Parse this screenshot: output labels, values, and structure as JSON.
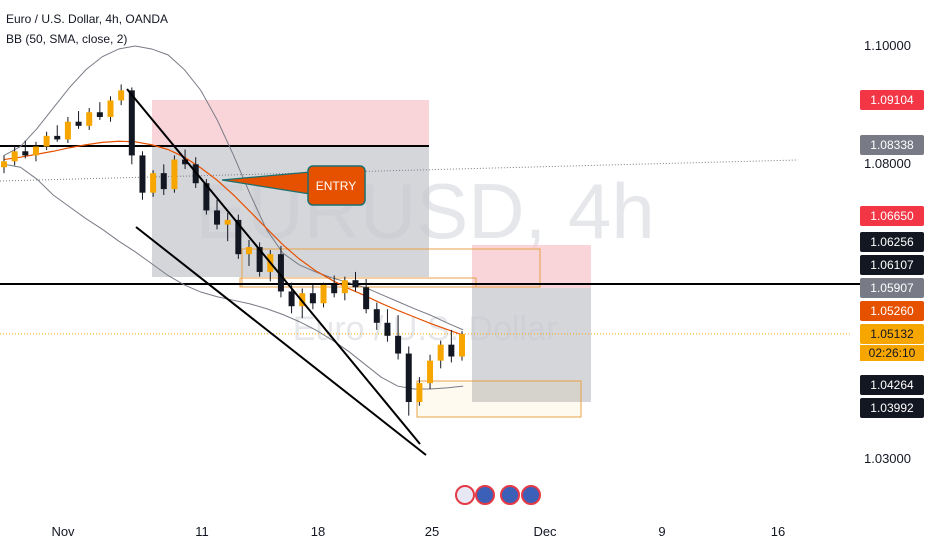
{
  "legend": {
    "title": "Euro / U.S. Dollar, 4h, OANDA",
    "indicator": "BB (50, SMA, close, 2)"
  },
  "watermark": {
    "symbol": "EURUSD, 4h",
    "name": "Euro / U.S. Dollar"
  },
  "annotation": {
    "label": "ENTRY"
  },
  "colors": {
    "up": "#26a69a",
    "down": "#ef5350",
    "candle": "#f7a600",
    "basis": "#e65100",
    "band": "#787b86",
    "stop_zone": "#f7c5cc",
    "target_zone": "#c6c8cd",
    "entry_box": "#e8a244"
  },
  "price_scale": {
    "labels": [
      "1.10000",
      "1.08000",
      "1.03000"
    ],
    "badges": [
      {
        "text": "1.09104",
        "bg": "#f23645",
        "fg": "#ffffff"
      },
      {
        "text": "1.08338",
        "bg": "#787b86",
        "fg": "#ffffff"
      },
      {
        "text": "1.06650",
        "bg": "#f23645",
        "fg": "#ffffff"
      },
      {
        "text": "1.06256",
        "bg": "#131722",
        "fg": "#ffffff"
      },
      {
        "text": "1.06107",
        "bg": "#131722",
        "fg": "#ffffff"
      },
      {
        "text": "1.05907",
        "bg": "#787b86",
        "fg": "#ffffff"
      },
      {
        "text": "1.05260",
        "bg": "#e65100",
        "fg": "#ffffff"
      },
      {
        "text": "1.05132",
        "bg": "#f7a600",
        "fg": "#131722"
      },
      {
        "text": "1.04264",
        "bg": "#131722",
        "fg": "#ffffff"
      },
      {
        "text": "1.03992",
        "bg": "#131722",
        "fg": "#ffffff"
      }
    ],
    "countdown": "02:26:10"
  },
  "time_axis": {
    "labels": [
      "Nov",
      "11",
      "18",
      "25",
      "Dec",
      "9",
      "16"
    ]
  },
  "chart_data": {
    "type": "candlestick",
    "symbol": "EURUSD",
    "timeframe": "4h",
    "ylim": [
      1.026,
      1.108
    ],
    "last_price": 1.05132,
    "horizontal_levels": [
      1.08338,
      1.05907
    ],
    "ohlc": [
      [
        1.0795,
        1.0815,
        1.0785,
        1.0805
      ],
      [
        1.0805,
        1.083,
        1.0798,
        1.0822
      ],
      [
        1.0822,
        1.084,
        1.081,
        1.0815
      ],
      [
        1.0815,
        1.0838,
        1.0805,
        1.083
      ],
      [
        1.083,
        1.0855,
        1.0824,
        1.0848
      ],
      [
        1.0848,
        1.0866,
        1.0838,
        1.0842
      ],
      [
        1.0842,
        1.088,
        1.0836,
        1.0872
      ],
      [
        1.0872,
        1.089,
        1.086,
        1.0865
      ],
      [
        1.0865,
        1.0895,
        1.0858,
        1.0888
      ],
      [
        1.0888,
        1.0905,
        1.0875,
        1.088
      ],
      [
        1.088,
        1.0915,
        1.0872,
        1.0908
      ],
      [
        1.0908,
        1.0935,
        1.09,
        1.0925
      ],
      [
        1.0925,
        1.093,
        1.08,
        1.0815
      ],
      [
        1.0815,
        1.0822,
        1.074,
        1.0752
      ],
      [
        1.0752,
        1.079,
        1.0745,
        1.0785
      ],
      [
        1.0785,
        1.08,
        1.0748,
        1.0758
      ],
      [
        1.0758,
        1.0815,
        1.0752,
        1.0808
      ],
      [
        1.0808,
        1.0825,
        1.0792,
        1.08
      ],
      [
        1.08,
        1.0812,
        1.076,
        1.0768
      ],
      [
        1.0768,
        1.0775,
        1.0715,
        1.0722
      ],
      [
        1.0722,
        1.074,
        1.069,
        1.0698
      ],
      [
        1.0698,
        1.0718,
        1.067,
        1.0706
      ],
      [
        1.0706,
        1.0715,
        1.064,
        1.0648
      ],
      [
        1.0648,
        1.0672,
        1.0628,
        1.066
      ],
      [
        1.066,
        1.0668,
        1.061,
        1.0618
      ],
      [
        1.0618,
        1.0655,
        1.0602,
        1.0648
      ],
      [
        1.0648,
        1.0662,
        1.0575,
        1.0585
      ],
      [
        1.0585,
        1.06,
        1.0548,
        1.056
      ],
      [
        1.056,
        1.059,
        1.054,
        1.0582
      ],
      [
        1.0582,
        1.0596,
        1.0555,
        1.0565
      ],
      [
        1.0565,
        1.06,
        1.0558,
        1.0596
      ],
      [
        1.0596,
        1.0612,
        1.0575,
        1.0582
      ],
      [
        1.0582,
        1.061,
        1.057,
        1.0604
      ],
      [
        1.0604,
        1.0618,
        1.0585,
        1.0592
      ],
      [
        1.0592,
        1.0606,
        1.0548,
        1.0555
      ],
      [
        1.0555,
        1.0566,
        1.052,
        1.0532
      ],
      [
        1.0532,
        1.0555,
        1.05,
        1.051
      ],
      [
        1.051,
        1.0545,
        1.047,
        1.048
      ],
      [
        1.048,
        1.0492,
        1.0375,
        1.0398
      ],
      [
        1.0398,
        1.044,
        1.0392,
        1.043
      ],
      [
        1.043,
        1.0478,
        1.042,
        1.0468
      ],
      [
        1.0468,
        1.0502,
        1.0455,
        1.0495
      ],
      [
        1.0495,
        1.052,
        1.0465,
        1.0475
      ],
      [
        1.0475,
        1.0518,
        1.0468,
        1.0513
      ]
    ],
    "bollinger": {
      "basis": [
        1.0808,
        1.0812,
        1.0817,
        1.0822,
        1.0828,
        1.0833,
        1.0837,
        1.0839,
        1.0838,
        1.0833,
        1.0825,
        1.0812,
        1.0794,
        1.0773,
        1.0748,
        1.072,
        1.0692,
        1.0664,
        1.064,
        1.062,
        1.0604,
        1.059,
        1.0578,
        1.0565,
        1.0553,
        1.0542,
        1.0531,
        1.0521,
        1.0511
      ],
      "upper": [
        1.0815,
        1.083,
        1.086,
        1.0895,
        1.093,
        1.096,
        1.0982,
        1.0995,
        1.1,
        1.0995,
        1.0985,
        1.096,
        1.0925,
        1.0875,
        1.0815,
        1.075,
        1.069,
        1.065,
        1.063,
        1.0618,
        1.0608,
        1.06,
        1.0592,
        1.058,
        1.0568,
        1.0556,
        1.0545,
        1.0532,
        1.052
      ],
      "lower": [
        1.08,
        1.0795,
        1.0775,
        1.0748,
        1.0728,
        1.0708,
        1.069,
        1.067,
        1.0652,
        1.0632,
        1.0612,
        1.0596,
        1.0584,
        1.0576,
        1.057,
        1.0564,
        1.0556,
        1.0546,
        1.0534,
        1.052,
        1.0503,
        1.0484,
        1.0462,
        1.044,
        1.0425,
        1.042,
        1.042,
        1.0422,
        1.0425
      ]
    }
  }
}
